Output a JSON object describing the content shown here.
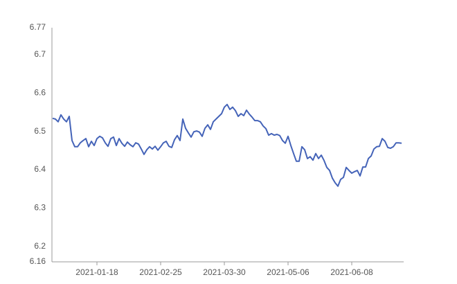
{
  "chart_data": {
    "type": "line",
    "categories": [
      null,
      null,
      null,
      null,
      null,
      null,
      null,
      null,
      null,
      null,
      null,
      null,
      null,
      null,
      null,
      null,
      "2021-01-18",
      null,
      null,
      null,
      null,
      null,
      null,
      null,
      null,
      null,
      null,
      null,
      null,
      null,
      null,
      null,
      null,
      null,
      null,
      null,
      null,
      null,
      null,
      "2021-02-25",
      null,
      null,
      null,
      null,
      null,
      null,
      null,
      null,
      null,
      null,
      null,
      null,
      null,
      null,
      null,
      null,
      null,
      null,
      null,
      null,
      null,
      null,
      "2021-03-30",
      null,
      null,
      null,
      null,
      null,
      null,
      null,
      null,
      null,
      null,
      null,
      null,
      null,
      null,
      null,
      null,
      null,
      null,
      null,
      null,
      null,
      null,
      "2021-05-06",
      null,
      null,
      null,
      null,
      null,
      null,
      null,
      null,
      null,
      null,
      null,
      null,
      null,
      null,
      null,
      null,
      null,
      null,
      null,
      null,
      null,
      null,
      "2021-06-08",
      null,
      null,
      null,
      null,
      null,
      null,
      null,
      null,
      null,
      null,
      null,
      null,
      null,
      null,
      null,
      null,
      null,
      null
    ],
    "values": [
      6.534,
      6.532,
      6.525,
      6.543,
      6.532,
      6.525,
      6.539,
      6.476,
      6.46,
      6.46,
      6.47,
      6.476,
      6.481,
      6.46,
      6.474,
      6.463,
      6.481,
      6.487,
      6.483,
      6.47,
      6.461,
      6.481,
      6.485,
      6.463,
      6.481,
      6.469,
      6.461,
      6.472,
      6.465,
      6.46,
      6.47,
      6.467,
      6.454,
      6.44,
      6.452,
      6.46,
      6.454,
      6.461,
      6.451,
      6.46,
      6.47,
      6.474,
      6.461,
      6.458,
      6.478,
      6.489,
      6.476,
      6.532,
      6.508,
      6.496,
      6.485,
      6.499,
      6.501,
      6.498,
      6.487,
      6.508,
      6.517,
      6.505,
      6.525,
      6.532,
      6.539,
      6.546,
      6.563,
      6.57,
      6.557,
      6.563,
      6.554,
      6.539,
      6.546,
      6.541,
      6.555,
      6.545,
      6.537,
      6.528,
      6.528,
      6.525,
      6.514,
      6.507,
      6.49,
      6.494,
      6.49,
      6.492,
      6.489,
      6.476,
      6.469,
      6.487,
      6.463,
      6.442,
      6.422,
      6.422,
      6.46,
      6.452,
      6.429,
      6.434,
      6.425,
      6.442,
      6.429,
      6.438,
      6.424,
      6.406,
      6.398,
      6.378,
      6.366,
      6.357,
      6.375,
      6.38,
      6.406,
      6.398,
      6.391,
      6.395,
      6.398,
      6.384,
      6.407,
      6.407,
      6.429,
      6.436,
      6.454,
      6.46,
      6.461,
      6.481,
      6.474,
      6.458,
      6.456,
      6.46,
      6.47,
      6.47,
      6.469
    ],
    "color": "#4463b8",
    "ylim": [
      6.16,
      6.77
    ],
    "yticks": [
      6.16,
      6.2,
      6.3,
      6.4,
      6.5,
      6.6,
      6.7,
      6.77
    ]
  }
}
